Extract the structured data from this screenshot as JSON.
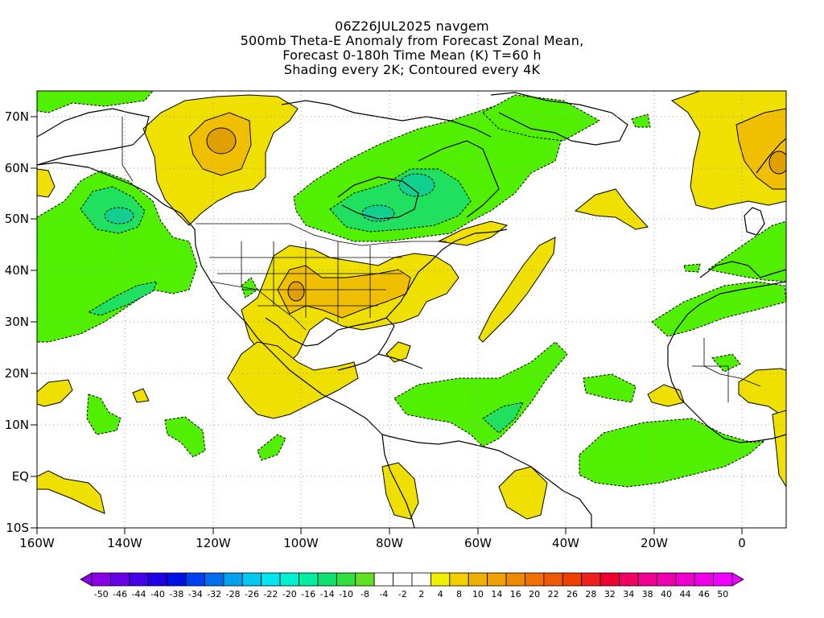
{
  "title": {
    "line1": "06Z26JUL2025 navgem",
    "line2": "500mb Theta-E Anomaly from Forecast Zonal Mean,",
    "line3": "Forecast 0-180h Time Mean (K) T=60 h",
    "line4": "Shading every 2K; Contoured every 4K"
  },
  "map": {
    "lon_range": [
      -160,
      10
    ],
    "lat_range": [
      -10,
      75
    ],
    "lon_ticks": [
      "160W",
      "140W",
      "120W",
      "100W",
      "80W",
      "60W",
      "40W",
      "20W",
      "0"
    ],
    "lat_ticks": [
      "70N",
      "60N",
      "50N",
      "40N",
      "30N",
      "20N",
      "10N",
      "EQ",
      "10S"
    ],
    "grid": "dotted",
    "fields": [
      {
        "name": "warm-anomaly-4-8",
        "color": "#f0e000"
      },
      {
        "name": "warm-anomaly-8-12",
        "color": "#f0c000"
      },
      {
        "name": "warm-anomaly-12-16",
        "color": "#e0a000"
      },
      {
        "name": "cold-anomaly-4-8",
        "color": "#50f000"
      },
      {
        "name": "cold-anomaly-8-12",
        "color": "#20e060"
      },
      {
        "name": "cold-anomaly-12-16",
        "color": "#10d090"
      }
    ]
  },
  "colorbar": {
    "labels": [
      "-50",
      "-46",
      "-44",
      "-40",
      "-38",
      "-34",
      "-32",
      "-28",
      "-26",
      "-22",
      "-20",
      "-16",
      "-14",
      "-10",
      "-8",
      "-4",
      "-2",
      "2",
      "4",
      "8",
      "10",
      "14",
      "16",
      "20",
      "22",
      "26",
      "28",
      "32",
      "34",
      "38",
      "40",
      "44",
      "46",
      "50"
    ],
    "colors": [
      "#8a00e6",
      "#6600e6",
      "#4400e6",
      "#2200e6",
      "#0010e6",
      "#0040f0",
      "#0070f0",
      "#00a0f0",
      "#00c8f0",
      "#00e6f0",
      "#00f0d0",
      "#00f0a0",
      "#10e070",
      "#30e040",
      "#60e020",
      "#ffffff",
      "#ffffff",
      "#ffffff",
      "#f0f000",
      "#f0d000",
      "#f0b000",
      "#f0a000",
      "#f08800",
      "#f07000",
      "#f05800",
      "#f04000",
      "#f02020",
      "#f00030",
      "#f00060",
      "#f00090",
      "#f000b0",
      "#f000d0",
      "#f000e6",
      "#f000ff"
    ]
  }
}
